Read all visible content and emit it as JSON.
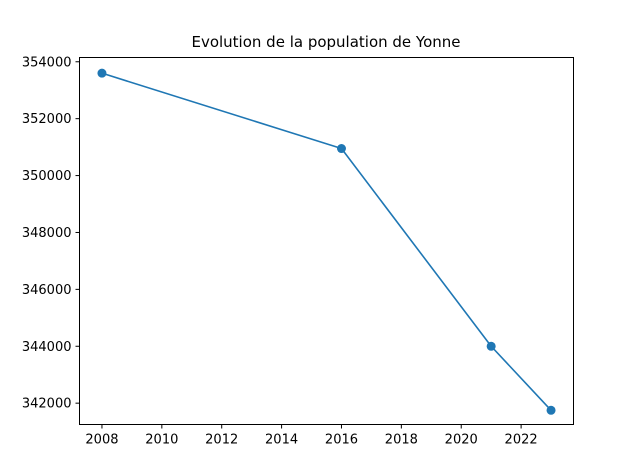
{
  "chart_data": {
    "type": "line",
    "title": "Evolution de la population de Yonne",
    "xlabel": "",
    "ylabel": "",
    "x": [
      2008,
      2016,
      2021,
      2023
    ],
    "series": [
      {
        "values": [
          353600,
          350950,
          344000,
          341750
        ],
        "color": "#1f77b4",
        "marker": "circle"
      }
    ],
    "xlim": [
      2007.25,
      2023.75
    ],
    "ylim": [
      341250,
      354150
    ],
    "xticks": [
      2008,
      2010,
      2012,
      2014,
      2016,
      2018,
      2020,
      2022
    ],
    "yticks": [
      342000,
      344000,
      346000,
      348000,
      350000,
      352000,
      354000
    ],
    "grid": false
  }
}
